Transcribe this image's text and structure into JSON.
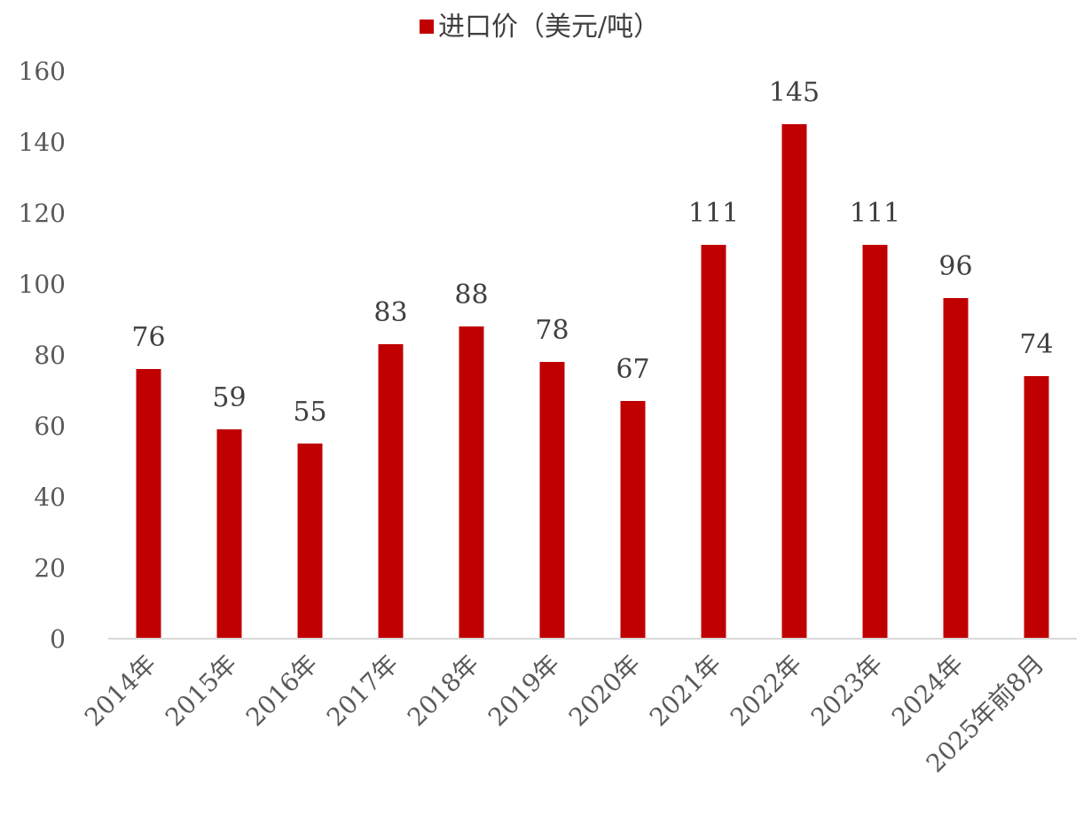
{
  "chart_data": {
    "type": "bar",
    "categories": [
      "2014年",
      "2015年",
      "2016年",
      "2017年",
      "2018年",
      "2019年",
      "2020年",
      "2021年",
      "2022年",
      "2023年",
      "2024年",
      "2025年前8月"
    ],
    "series": [
      {
        "name": "进口价（美元/吨）",
        "values": [
          76,
          59,
          55,
          83,
          88,
          78,
          67,
          111,
          145,
          111,
          96,
          74
        ]
      }
    ],
    "ylim": [
      0,
      160
    ],
    "yticks": [
      0,
      20,
      40,
      60,
      80,
      100,
      120,
      140,
      160
    ],
    "grid": false,
    "legend_position": "top-center",
    "colors": {
      "bar": "#C00000",
      "axis": "#D9D9D9"
    }
  }
}
